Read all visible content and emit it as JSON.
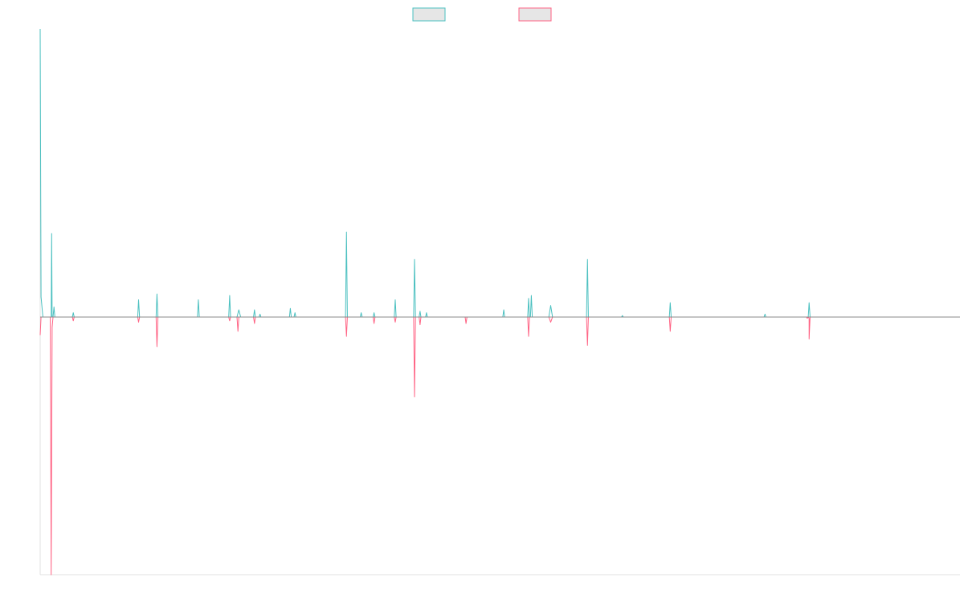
{
  "chart_data": {
    "type": "line",
    "title": "",
    "xlabel": "",
    "ylabel": "",
    "grid": false,
    "legend_position": "top-center",
    "legend": [
      {
        "name": "",
        "color": "#4bc0c0"
      },
      {
        "name": "",
        "color": "#ff6384"
      }
    ],
    "x_range": [
      0,
      1000
    ],
    "y_range": [
      -1,
      1
    ],
    "series": [
      {
        "name": "",
        "color": "#4bc0c0",
        "points": [
          [
            0,
            1.0
          ],
          [
            1,
            0.07
          ],
          [
            3,
            0.0
          ],
          [
            12,
            0.0
          ],
          [
            12.5,
            0.29
          ],
          [
            13,
            0.0
          ],
          [
            14,
            0.0
          ],
          [
            15,
            0.035
          ],
          [
            16,
            0.0
          ],
          [
            35,
            0.0
          ],
          [
            36,
            0.015
          ],
          [
            37,
            0.0
          ],
          [
            106,
            0.0
          ],
          [
            107,
            0.06
          ],
          [
            108,
            0.0
          ],
          [
            126,
            0.0
          ],
          [
            127,
            0.08
          ],
          [
            128,
            0.0
          ],
          [
            171,
            0.0
          ],
          [
            172,
            0.06
          ],
          [
            173,
            0.0
          ],
          [
            205,
            0.0
          ],
          [
            206,
            0.075
          ],
          [
            207,
            0.0
          ],
          [
            214,
            0.0
          ],
          [
            216,
            0.025
          ],
          [
            218,
            0.0
          ],
          [
            232,
            0.0
          ],
          [
            233,
            0.025
          ],
          [
            234,
            0.0
          ],
          [
            238,
            0.0
          ],
          [
            239,
            0.01
          ],
          [
            240,
            0.0
          ],
          [
            271,
            0.0
          ],
          [
            272,
            0.03
          ],
          [
            273,
            0.0
          ],
          [
            276,
            0.0
          ],
          [
            277,
            0.015
          ],
          [
            278,
            0.0
          ],
          [
            332,
            0.0
          ],
          [
            333,
            0.295
          ],
          [
            334,
            0.0
          ],
          [
            348,
            0.0
          ],
          [
            349,
            0.015
          ],
          [
            350,
            0.0
          ],
          [
            362,
            0.0
          ],
          [
            363,
            0.015
          ],
          [
            364,
            0.0
          ],
          [
            385,
            0.0
          ],
          [
            386,
            0.06
          ],
          [
            387,
            0.0
          ],
          [
            406,
            0.0
          ],
          [
            407,
            0.2
          ],
          [
            408,
            0.0
          ],
          [
            412,
            0.0
          ],
          [
            413,
            0.02
          ],
          [
            414,
            0.0
          ],
          [
            419,
            0.0
          ],
          [
            420,
            0.015
          ],
          [
            421,
            0.0
          ],
          [
            503,
            0.0
          ],
          [
            504,
            0.025
          ],
          [
            505,
            0.0
          ],
          [
            530,
            0.0
          ],
          [
            531,
            0.065
          ],
          [
            532,
            0.0
          ],
          [
            533,
            0.0
          ],
          [
            534,
            0.075
          ],
          [
            535,
            0.0
          ],
          [
            553,
            0.0
          ],
          [
            555,
            0.04
          ],
          [
            557,
            0.0
          ],
          [
            594,
            0.0
          ],
          [
            595,
            0.2
          ],
          [
            596,
            0.0
          ],
          [
            632,
            0.0
          ],
          [
            633,
            0.005
          ],
          [
            634,
            0.0
          ],
          [
            684,
            0.0
          ],
          [
            685,
            0.05
          ],
          [
            686,
            0.0
          ],
          [
            787,
            0.0
          ],
          [
            788,
            0.01
          ],
          [
            789,
            0.0
          ],
          [
            835,
            0.0
          ],
          [
            836,
            0.05
          ],
          [
            837,
            0.0
          ],
          [
            1000,
            0.0
          ]
        ]
      },
      {
        "name": "",
        "color": "#ff6384",
        "points": [
          [
            0,
            -0.07
          ],
          [
            1,
            0.0
          ],
          [
            11,
            0.0
          ],
          [
            12,
            -1.0
          ],
          [
            13,
            -0.04
          ],
          [
            14,
            0.0
          ],
          [
            35,
            0.0
          ],
          [
            36,
            -0.015
          ],
          [
            37,
            0.0
          ],
          [
            106,
            0.0
          ],
          [
            107,
            -0.02
          ],
          [
            108,
            0.0
          ],
          [
            126,
            0.0
          ],
          [
            127,
            -0.115
          ],
          [
            128,
            0.0
          ],
          [
            205,
            0.0
          ],
          [
            206,
            -0.015
          ],
          [
            207,
            0.0
          ],
          [
            214,
            0.0
          ],
          [
            215,
            -0.055
          ],
          [
            216,
            0.0
          ],
          [
            232,
            0.0
          ],
          [
            233,
            -0.025
          ],
          [
            234,
            0.0
          ],
          [
            332,
            0.0
          ],
          [
            333,
            -0.075
          ],
          [
            334,
            0.0
          ],
          [
            362,
            0.0
          ],
          [
            363,
            -0.025
          ],
          [
            364,
            0.0
          ],
          [
            385,
            0.0
          ],
          [
            386,
            -0.02
          ],
          [
            387,
            0.0
          ],
          [
            406,
            0.0
          ],
          [
            407,
            -0.31
          ],
          [
            408,
            0.0
          ],
          [
            412,
            0.0
          ],
          [
            413,
            -0.03
          ],
          [
            414,
            0.0
          ],
          [
            462,
            0.0
          ],
          [
            463,
            -0.025
          ],
          [
            464,
            0.0
          ],
          [
            530,
            0.0
          ],
          [
            531,
            -0.075
          ],
          [
            532,
            0.0
          ],
          [
            553,
            0.0
          ],
          [
            555,
            -0.02
          ],
          [
            557,
            0.0
          ],
          [
            594,
            0.0
          ],
          [
            595,
            -0.11
          ],
          [
            596,
            0.0
          ],
          [
            684,
            0.0
          ],
          [
            685,
            -0.055
          ],
          [
            686,
            0.0
          ],
          [
            835,
            0.0
          ],
          [
            836,
            -0.005
          ],
          [
            837,
            0.0
          ],
          [
            833,
            0.0
          ],
          [
            834,
            -0.005
          ],
          [
            835,
            0.0
          ],
          [
            835,
            0.0
          ],
          [
            836,
            -0.085
          ],
          [
            837,
            0.0
          ],
          [
            1000,
            0.0
          ]
        ]
      }
    ]
  }
}
